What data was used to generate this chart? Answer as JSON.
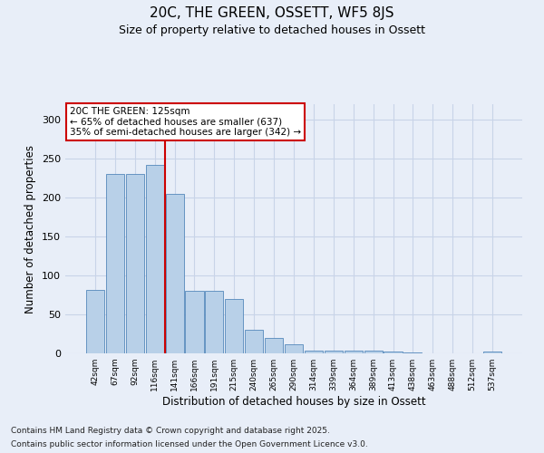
{
  "title1": "20C, THE GREEN, OSSETT, WF5 8JS",
  "title2": "Size of property relative to detached houses in Ossett",
  "xlabel": "Distribution of detached houses by size in Ossett",
  "ylabel": "Number of detached properties",
  "categories": [
    "42sqm",
    "67sqm",
    "92sqm",
    "116sqm",
    "141sqm",
    "166sqm",
    "191sqm",
    "215sqm",
    "240sqm",
    "265sqm",
    "290sqm",
    "314sqm",
    "339sqm",
    "364sqm",
    "389sqm",
    "413sqm",
    "438sqm",
    "463sqm",
    "488sqm",
    "512sqm",
    "537sqm"
  ],
  "values": [
    82,
    230,
    230,
    242,
    205,
    80,
    80,
    70,
    30,
    20,
    12,
    4,
    4,
    4,
    3,
    2,
    1,
    0,
    0,
    0,
    2
  ],
  "bar_color": "#b8d0e8",
  "bar_edge_color": "#5588bb",
  "grid_color": "#c8d4e8",
  "background_color": "#e8eef8",
  "vline_x": 4.0,
  "annotation_text": "20C THE GREEN: 125sqm\n← 65% of detached houses are smaller (637)\n35% of semi-detached houses are larger (342) →",
  "annotation_box_color": "#ffffff",
  "annotation_box_edge": "#cc0000",
  "annotation_text_color": "#000000",
  "vline_color": "#cc0000",
  "footer1": "Contains HM Land Registry data © Crown copyright and database right 2025.",
  "footer2": "Contains public sector information licensed under the Open Government Licence v3.0.",
  "ylim": [
    0,
    320
  ],
  "yticks": [
    0,
    50,
    100,
    150,
    200,
    250,
    300
  ]
}
